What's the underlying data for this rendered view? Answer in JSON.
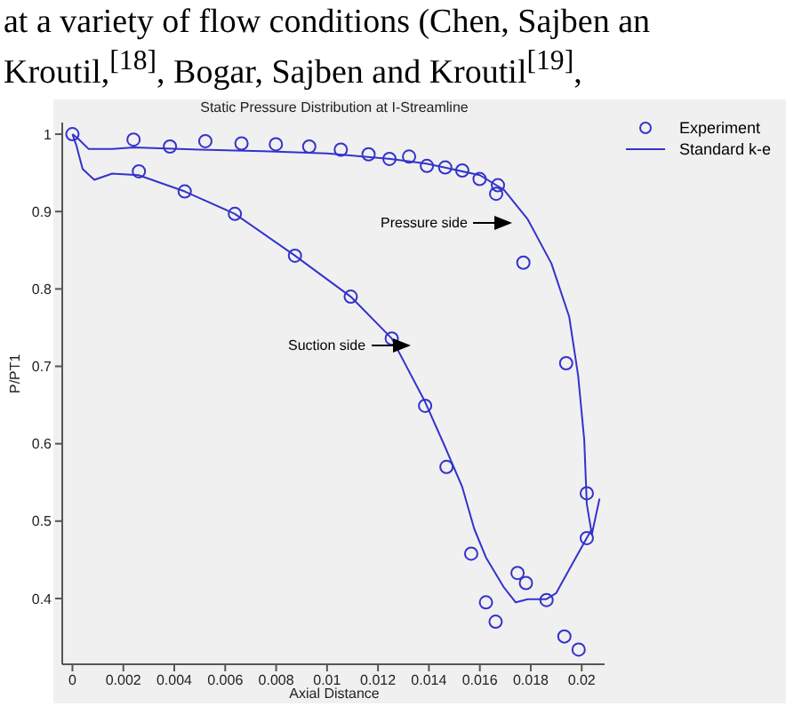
{
  "chart_data": {
    "type": "scatter",
    "title": "Static Pressure Distribution at I-Streamline",
    "xlabel": "Axial Distance",
    "ylabel": "P/PT1",
    "xlim": [
      -0.0004,
      0.0209
    ],
    "ylim": [
      0.315,
      1.015
    ],
    "xticks": [
      0,
      0.002,
      0.004,
      0.006,
      0.008,
      0.01,
      0.012,
      0.014,
      0.016,
      0.018,
      0.02
    ],
    "yticks": [
      0.4,
      0.5,
      0.6,
      0.7,
      0.8,
      0.9,
      1
    ],
    "grid": false,
    "legend": "top right",
    "annotations": [
      "at a variety of flow conditions (Chen, Sajben an",
      "Kroutil,$^{[18]}$,  Bogar, Sajben and Kroutil$^{[19]}$,",
      "Pressure side",
      "Suction side"
    ],
    "series": [
      {
        "name": "Experiment",
        "marker": "circle",
        "color": "#3333cc",
        "x": [
          0,
          0.0024,
          0.00383,
          0.00522,
          0.00664,
          0.00799,
          0.0093,
          0.01054,
          0.01163,
          0.01245,
          0.01322,
          0.01392,
          0.01464,
          0.01531,
          0.01599,
          0.01671,
          0.01664,
          0.01771,
          0.01939,
          0.0202,
          0.0202,
          0.00261,
          0.00441,
          0.00638,
          0.00874,
          0.01093,
          0.01254,
          0.01385,
          0.01469,
          0.01566,
          0.01624,
          0.01662,
          0.01748,
          0.01781,
          0.01862,
          0.01932,
          0.01988
        ],
        "values": [
          1.0,
          0.993,
          0.984,
          0.991,
          0.988,
          0.987,
          0.984,
          0.98,
          0.974,
          0.968,
          0.971,
          0.959,
          0.957,
          0.953,
          0.942,
          0.934,
          0.923,
          0.834,
          0.704,
          0.536,
          0.478,
          0.952,
          0.926,
          0.897,
          0.843,
          0.79,
          0.736,
          0.649,
          0.57,
          0.458,
          0.395,
          0.37,
          0.433,
          0.42,
          0.398,
          0.351,
          0.334
        ]
      },
      {
        "name": "Standard k-e",
        "type": "line",
        "marker": "none",
        "line_style": "solid",
        "color": "#3333cc",
        "x": [
          0,
          0.0002,
          0.00063,
          0.00156,
          0.0024,
          0.005,
          0.0075,
          0.01,
          0.0125,
          0.0139,
          0.016,
          0.01695,
          0.01788,
          0.01881,
          0.01951,
          0.01986,
          0.0201,
          0.0202,
          0.0204,
          0.0207
        ],
        "values": [
          1.0,
          0.995,
          0.981,
          0.981,
          0.983,
          0.98,
          0.978,
          0.975,
          0.968,
          0.962,
          0.947,
          0.928,
          0.89,
          0.833,
          0.764,
          0.688,
          0.605,
          0.522,
          0.483,
          0.529
        ]
      },
      {
        "type": "line",
        "marker": "none",
        "line_style": "solid",
        "color": "#3333cc",
        "x": [
          0.0204,
          0.0195,
          0.019,
          0.0186,
          0.01788,
          0.01741,
          0.01695,
          0.01624,
          0.01578,
          0.01531,
          0.01462,
          0.01385,
          0.01254,
          0.01093,
          0.00874,
          0.00638,
          0.00441,
          0.0026,
          0.00156,
          0.00086,
          0.0004,
          0.00016,
          0
        ],
        "values": [
          0.49,
          0.437,
          0.407,
          0.399,
          0.399,
          0.395,
          0.414,
          0.453,
          0.49,
          0.544,
          0.597,
          0.654,
          0.736,
          0.79,
          0.843,
          0.897,
          0.926,
          0.947,
          0.949,
          0.941,
          0.955,
          0.985,
          1.0
        ]
      }
    ]
  }
}
